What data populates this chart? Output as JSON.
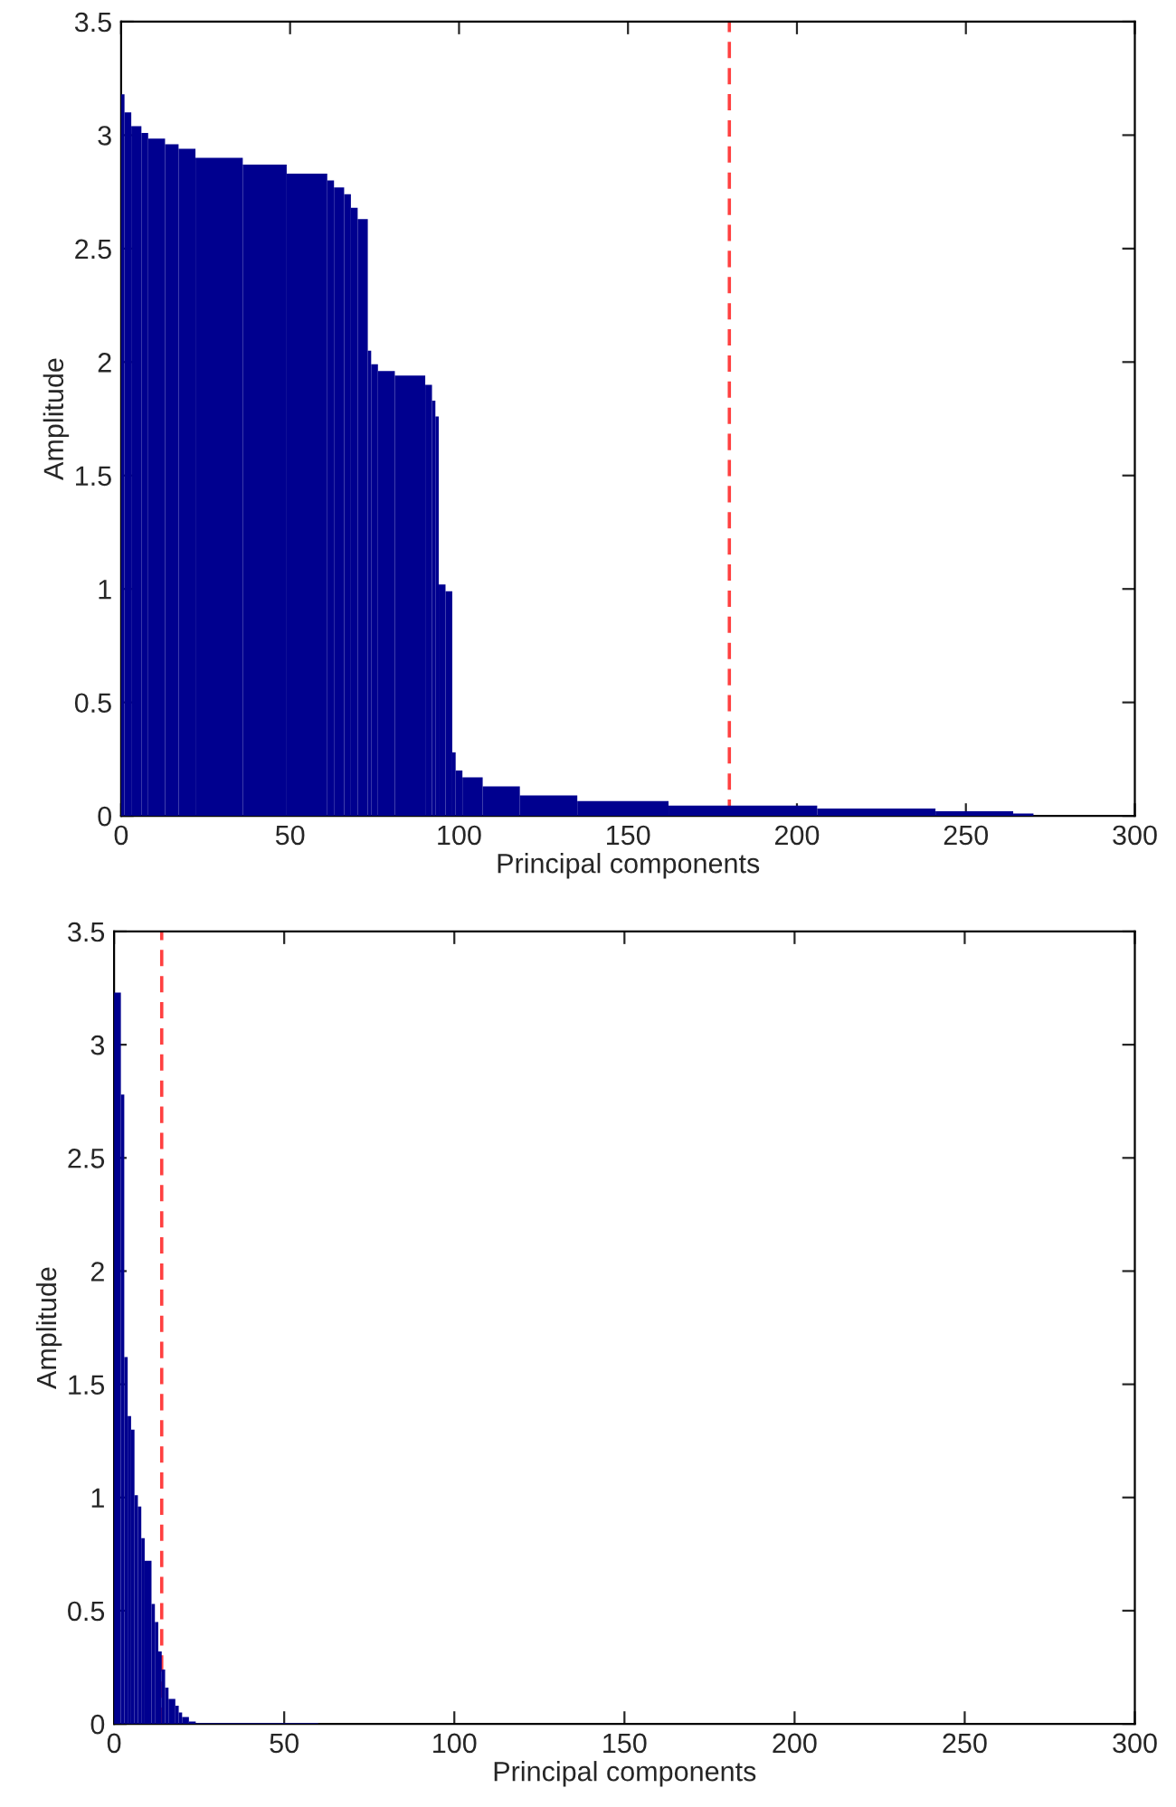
{
  "chart_data": [
    {
      "type": "histogram",
      "xlabel": "Principal components",
      "ylabel": "Amplitude",
      "color": "#00008f",
      "bins": [
        0,
        1,
        3,
        6,
        8,
        13,
        17,
        22,
        36,
        49,
        61,
        63,
        66,
        68,
        70,
        73,
        74,
        76,
        81,
        90,
        92,
        93,
        94,
        96,
        98,
        99,
        101,
        107,
        118,
        135,
        162,
        206,
        241,
        264,
        270
      ],
      "values": [
        3.18,
        3.1,
        3.04,
        3.01,
        2.985,
        2.96,
        2.94,
        2.9,
        2.87,
        2.83,
        2.8,
        2.77,
        2.74,
        2.68,
        2.63,
        2.05,
        1.99,
        1.96,
        1.94,
        1.9,
        1.83,
        1.76,
        1.02,
        0.99,
        0.28,
        0.2,
        0.17,
        0.13,
        0.09,
        0.065,
        0.045,
        0.032,
        0.02,
        0.01
      ],
      "xlim": [
        0,
        300
      ],
      "xticks": [
        0,
        50,
        100,
        150,
        200,
        250,
        300
      ],
      "ylim": [
        0,
        3.5
      ],
      "yticks": [
        0,
        {
          "value": 0.5,
          "label": "0.5"
        },
        1,
        {
          "value": 1.5,
          "label": "1.5"
        },
        2,
        {
          "value": 2.5,
          "label": "2.5"
        },
        3,
        {
          "value": 3.5,
          "label": "3.5"
        }
      ],
      "ref_lines": [
        {
          "axis": "x",
          "value": 180,
          "color": "#ff4040",
          "line_style": "dashed"
        }
      ],
      "grid": false
    },
    {
      "type": "histogram",
      "xlabel": "Principal components",
      "ylabel": "Amplitude",
      "color": "#00008f",
      "bins": [
        0,
        2,
        3,
        4,
        5,
        6,
        7,
        8,
        9,
        11,
        12,
        13,
        14,
        15,
        16,
        18,
        19,
        20,
        22,
        24,
        60
      ],
      "values": [
        3.23,
        2.78,
        1.62,
        1.36,
        1.3,
        1.01,
        0.96,
        0.82,
        0.72,
        0.53,
        0.45,
        0.32,
        0.24,
        0.16,
        0.11,
        0.08,
        0.05,
        0.03,
        0.01,
        0.003
      ],
      "xlim": [
        0,
        300
      ],
      "xticks": [
        0,
        50,
        100,
        150,
        200,
        250,
        300
      ],
      "ylim": [
        0,
        3.5
      ],
      "yticks": [
        0,
        {
          "value": 0.5,
          "label": "0.5"
        },
        1,
        {
          "value": 1.5,
          "label": "1.5"
        },
        2,
        {
          "value": 2.5,
          "label": "2.5"
        },
        3,
        {
          "value": 3.5,
          "label": "3.5"
        }
      ],
      "ref_lines": [
        {
          "axis": "x",
          "value": 14,
          "color": "#ff4040",
          "line_style": "dashed"
        }
      ],
      "grid": false
    }
  ]
}
